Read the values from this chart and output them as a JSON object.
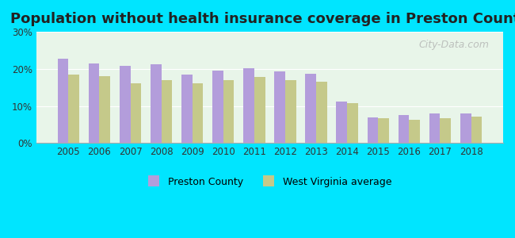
{
  "title": "Population without health insurance coverage in Preston County",
  "years": [
    2005,
    2006,
    2007,
    2008,
    2009,
    2010,
    2011,
    2012,
    2013,
    2014,
    2015,
    2016,
    2017,
    2018
  ],
  "preston_county": [
    22.8,
    21.5,
    20.8,
    21.2,
    18.5,
    19.6,
    20.2,
    19.4,
    18.7,
    11.2,
    7.0,
    7.5,
    8.0,
    7.9
  ],
  "wv_average": [
    18.5,
    18.0,
    16.2,
    17.0,
    16.2,
    17.0,
    17.8,
    17.0,
    16.5,
    10.8,
    6.8,
    6.2,
    6.8,
    7.2
  ],
  "preston_color": "#b39ddb",
  "wv_color": "#c5c98a",
  "background_outer": "#00e5ff",
  "background_plot": "#e8f5e9",
  "ylim": [
    0,
    30
  ],
  "yticks": [
    0,
    10,
    20,
    30
  ],
  "ylabel_format": "%",
  "title_fontsize": 13,
  "legend_labels": [
    "Preston County",
    "West Virginia average"
  ],
  "watermark": "City-Data.com"
}
